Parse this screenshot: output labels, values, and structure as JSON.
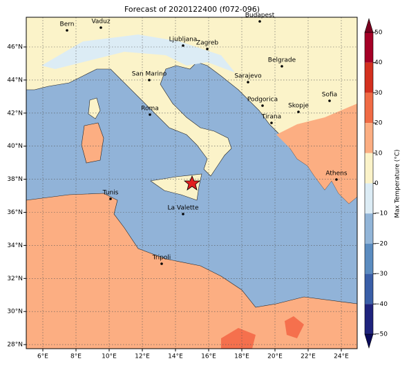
{
  "title": "Forecast of 2020122400 (f072-096)",
  "x_ticks": [
    "6°E",
    "8°E",
    "10°E",
    "12°E",
    "14°E",
    "16°E",
    "18°E",
    "20°E",
    "22°E",
    "24°E"
  ],
  "y_ticks": [
    "46°N",
    "44°N",
    "42°N",
    "40°N",
    "38°N",
    "36°N",
    "34°N",
    "32°N",
    "30°N",
    "28°N"
  ],
  "cities": [
    "Bern",
    "Vaduz",
    "Budapest",
    "Ljubljana",
    "Zagreb",
    "Belgrade",
    "Sarajevo",
    "San Marino",
    "Sofia",
    "Podgorica",
    "Skopje",
    "Roma",
    "Tirana",
    "Athens",
    "Tunis",
    "La Valette",
    "Tripoli"
  ],
  "colorbar": {
    "label": "Max Temperature (°C)",
    "ticks": [
      "50",
      "40",
      "30",
      "20",
      "10",
      "0",
      "−10",
      "−20",
      "−30",
      "−40",
      "−50"
    ]
  }
}
